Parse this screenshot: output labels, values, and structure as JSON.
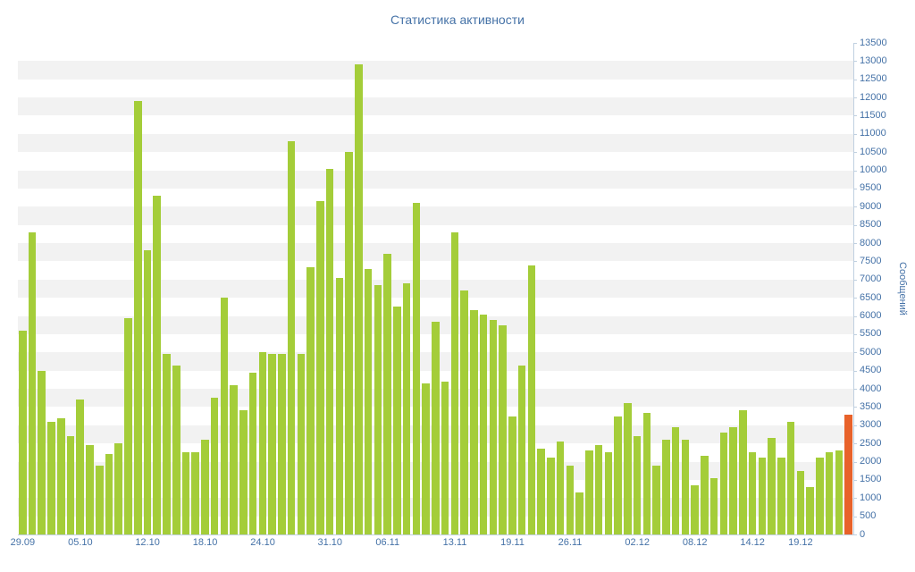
{
  "title": "Статистика активности",
  "chart_data": {
    "type": "bar",
    "title": "Статистика активности",
    "xlabel": "",
    "ylabel": "Сообщений",
    "ylim": [
      0,
      13500
    ],
    "ytick_step": 500,
    "grid": "alternating-horizontal-bands",
    "legend": "none",
    "y_axis_side": "right",
    "x_tick_labels": [
      "29.09",
      "05.10",
      "12.10",
      "18.10",
      "24.10",
      "31.10",
      "06.11",
      "13.11",
      "19.11",
      "26.11",
      "02.12",
      "08.12",
      "14.12",
      "19.12"
    ],
    "x_tick_positions": [
      0,
      6,
      13,
      19,
      25,
      32,
      38,
      45,
      51,
      57,
      64,
      70,
      76,
      81
    ],
    "values": [
      5600,
      8300,
      4500,
      3100,
      3200,
      2700,
      3700,
      2450,
      1900,
      2200,
      2500,
      5950,
      11900,
      7800,
      9300,
      4950,
      4650,
      2250,
      2250,
      2600,
      3750,
      6500,
      4100,
      3400,
      4450,
      5000,
      4950,
      4950,
      10800,
      4950,
      7350,
      9150,
      10050,
      7050,
      10500,
      12900,
      7300,
      6850,
      7700,
      6250,
      6900,
      9100,
      4150,
      5850,
      4200,
      8300,
      6700,
      6150,
      6050,
      5900,
      5750,
      3250,
      4650,
      7400,
      2350,
      2100,
      2550,
      1900,
      1150,
      2300,
      2450,
      2250,
      3250,
      3600,
      2700,
      3350,
      1900,
      2600,
      2950,
      2600,
      1350,
      2150,
      1550,
      2800,
      2950,
      3400,
      2250,
      2100,
      2650,
      2100,
      3100,
      1750,
      1300,
      2100,
      2250,
      2300,
      3300
    ],
    "highlight_index": 86,
    "colors": {
      "bar": "#a4cd39",
      "highlight_bar": "#e8622a",
      "band": "#f2f2f2",
      "axis_line": "#c0d0e0",
      "label_text": "#4572a7",
      "title_text": "#4572a7"
    }
  }
}
